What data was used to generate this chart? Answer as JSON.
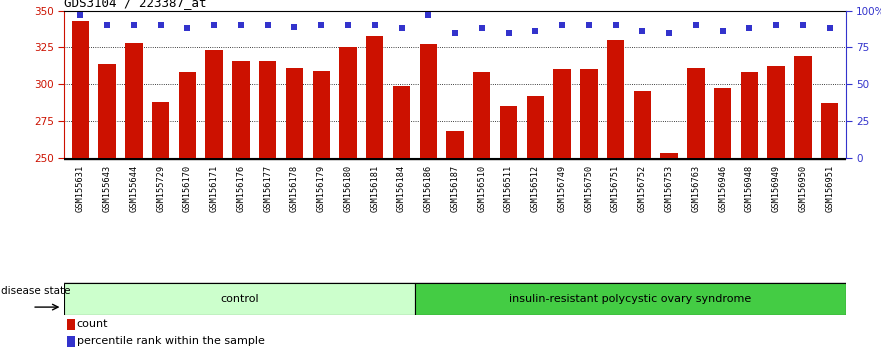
{
  "title": "GDS3104 / 223387_at",
  "samples": [
    "GSM155631",
    "GSM155643",
    "GSM155644",
    "GSM155729",
    "GSM156170",
    "GSM156171",
    "GSM156176",
    "GSM156177",
    "GSM156178",
    "GSM156179",
    "GSM156180",
    "GSM156181",
    "GSM156184",
    "GSM156186",
    "GSM156187",
    "GSM156510",
    "GSM156511",
    "GSM156512",
    "GSM156749",
    "GSM156750",
    "GSM156751",
    "GSM156752",
    "GSM156753",
    "GSM156763",
    "GSM156946",
    "GSM156948",
    "GSM156949",
    "GSM156950",
    "GSM156951"
  ],
  "bar_values": [
    343,
    314,
    328,
    288,
    308,
    323,
    316,
    316,
    311,
    309,
    325,
    333,
    299,
    327,
    268,
    308,
    285,
    292,
    310,
    310,
    330,
    295,
    253,
    311,
    297,
    308,
    312,
    319,
    287
  ],
  "percentile_values": [
    97,
    90,
    90,
    90,
    88,
    90,
    90,
    90,
    89,
    90,
    90,
    90,
    88,
    97,
    85,
    88,
    85,
    86,
    90,
    90,
    90,
    86,
    85,
    90,
    86,
    88,
    90,
    90,
    88
  ],
  "control_count": 13,
  "disease_count": 16,
  "group_labels": [
    "control",
    "insulin-resistant polycystic ovary syndrome"
  ],
  "bar_color": "#cc1100",
  "dot_color": "#3333cc",
  "ylim_left": [
    250,
    350
  ],
  "yticks_left": [
    250,
    275,
    300,
    325,
    350
  ],
  "ylim_right": [
    0,
    100
  ],
  "yticks_right": [
    0,
    25,
    50,
    75,
    100
  ],
  "grid_lines": [
    275,
    300,
    325
  ],
  "control_bg": "#ccffcc",
  "disease_bg": "#44cc44",
  "xlabel_area_bg": "#c8c8c8",
  "legend_dot_label": "percentile rank within the sample",
  "legend_bar_label": "count",
  "disease_state_label": "disease state"
}
